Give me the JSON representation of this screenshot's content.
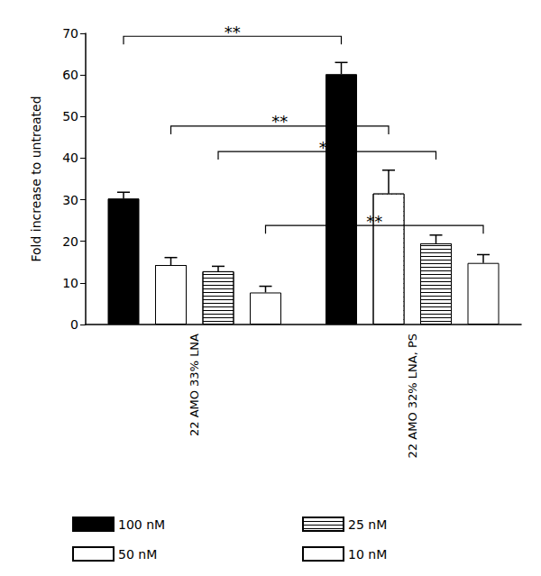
{
  "chart_data": {
    "type": "bar",
    "categories": [
      "22 AMO 33% LNA",
      "22 AMO 32% LNA, PS"
    ],
    "y_label": "Fold increase to untreated",
    "ylim": [
      0,
      70
    ],
    "yticks": [
      0,
      10,
      20,
      30,
      40,
      50,
      60,
      70
    ],
    "grid": false,
    "legend": "bottom",
    "series": [
      {
        "name": "100 nM",
        "color": "#000000",
        "values": [
          30.3,
          60.2
        ],
        "errors": [
          1.5,
          2.8
        ]
      },
      {
        "name": "50 nM",
        "color": "#ffffff",
        "values": [
          14.3,
          31.5
        ],
        "errors": [
          1.8,
          5.6
        ]
      },
      {
        "name": "25 nM",
        "color": "#ffffff",
        "values": [
          12.8,
          19.5
        ],
        "errors": [
          1.2,
          2.0
        ]
      },
      {
        "name": "10 nM",
        "color": "#ffffff",
        "values": [
          7.7,
          14.8
        ],
        "errors": [
          1.5,
          2.0
        ]
      }
    ],
    "significance": [
      {
        "series": "100 nM",
        "text": "**",
        "y": 69.3
      },
      {
        "series": "50 nM",
        "text": "**",
        "y": 47.7
      },
      {
        "series": "25 nM",
        "text": "**",
        "y": 41.6
      },
      {
        "series": "10 nM",
        "text": "**",
        "y": 23.8
      }
    ]
  }
}
